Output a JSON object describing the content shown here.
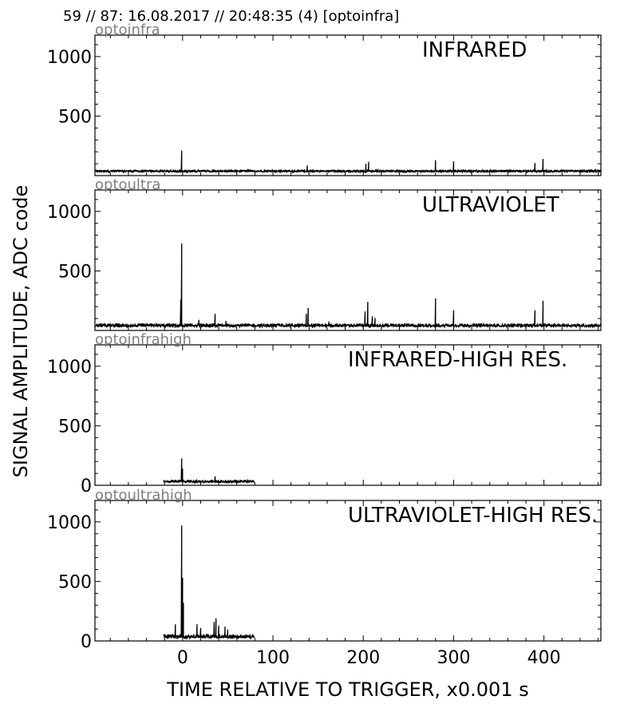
{
  "header": "59 // 87:   16.08.2017 // 20:48:35 (4)  [optoinfra]",
  "ylabel": "SIGNAL AMPLITUDE,  ADC code",
  "xlabel": "TIME RELATIVE TO TRIGGER,   x0.001 s",
  "colors": {
    "trace": "#000000",
    "channel_label": "#808080",
    "axes": "#000000"
  },
  "chart_data": [
    {
      "type": "line",
      "channel": "optoinfra",
      "title": "INFRARED",
      "xlim": [
        -97,
        463
      ],
      "ylim": [
        0,
        1180
      ],
      "yticks": [
        500,
        1000
      ],
      "xticks": [
        0,
        100,
        200,
        300,
        400
      ],
      "x_range": [
        -97,
        463
      ],
      "baseline": 40,
      "noise": 10,
      "peaks": [
        [
          -1,
          210
        ],
        [
          138,
          85
        ],
        [
          203,
          100
        ],
        [
          206,
          115
        ],
        [
          280,
          130
        ],
        [
          300,
          120
        ],
        [
          390,
          105
        ],
        [
          399,
          140
        ]
      ]
    },
    {
      "type": "line",
      "channel": "optoultra",
      "title": "ULTRAVIOLET",
      "xlim": [
        -97,
        463
      ],
      "ylim": [
        0,
        1180
      ],
      "yticks": [
        500,
        1000
      ],
      "xticks": [
        0,
        100,
        200,
        300,
        400
      ],
      "x_range": [
        -97,
        463
      ],
      "baseline": 45,
      "noise": 15,
      "peaks": [
        [
          -1,
          730
        ],
        [
          -2,
          260
        ],
        [
          18,
          90
        ],
        [
          36,
          140
        ],
        [
          48,
          80
        ],
        [
          137,
          140
        ],
        [
          139,
          190
        ],
        [
          162,
          75
        ],
        [
          202,
          160
        ],
        [
          205,
          240
        ],
        [
          210,
          120
        ],
        [
          213,
          105
        ],
        [
          280,
          270
        ],
        [
          300,
          170
        ],
        [
          390,
          170
        ],
        [
          399,
          250
        ]
      ]
    },
    {
      "type": "line",
      "channel": "optoinfrahigh",
      "title": "INFRARED-HIGH RES.",
      "xlim": [
        -97,
        463
      ],
      "ylim": [
        0,
        1180
      ],
      "yticks": [
        0,
        500,
        1000
      ],
      "xticks": [
        0,
        100,
        200,
        300,
        400
      ],
      "x_range": [
        -21,
        79
      ],
      "baseline": 35,
      "noise": 12,
      "peaks": [
        [
          -1,
          225
        ],
        [
          0,
          140
        ],
        [
          36,
          75
        ]
      ]
    },
    {
      "type": "line",
      "channel": "optoultrahigh",
      "title": "ULTRAVIOLET-HIGH RES.",
      "xlim": [
        -97,
        463
      ],
      "ylim": [
        0,
        1180
      ],
      "yticks": [
        0,
        500,
        1000
      ],
      "xticks": [
        0,
        100,
        200,
        300,
        400
      ],
      "xticklabels": [
        "0",
        "100",
        "200",
        "300",
        "400"
      ],
      "x_range": [
        -21,
        79
      ],
      "baseline": 40,
      "noise": 18,
      "peaks": [
        [
          -8,
          140
        ],
        [
          -1,
          970
        ],
        [
          0,
          530
        ],
        [
          1,
          320
        ],
        [
          16,
          140
        ],
        [
          20,
          110
        ],
        [
          35,
          160
        ],
        [
          37,
          190
        ],
        [
          40,
          130
        ],
        [
          47,
          120
        ],
        [
          50,
          95
        ]
      ]
    }
  ]
}
